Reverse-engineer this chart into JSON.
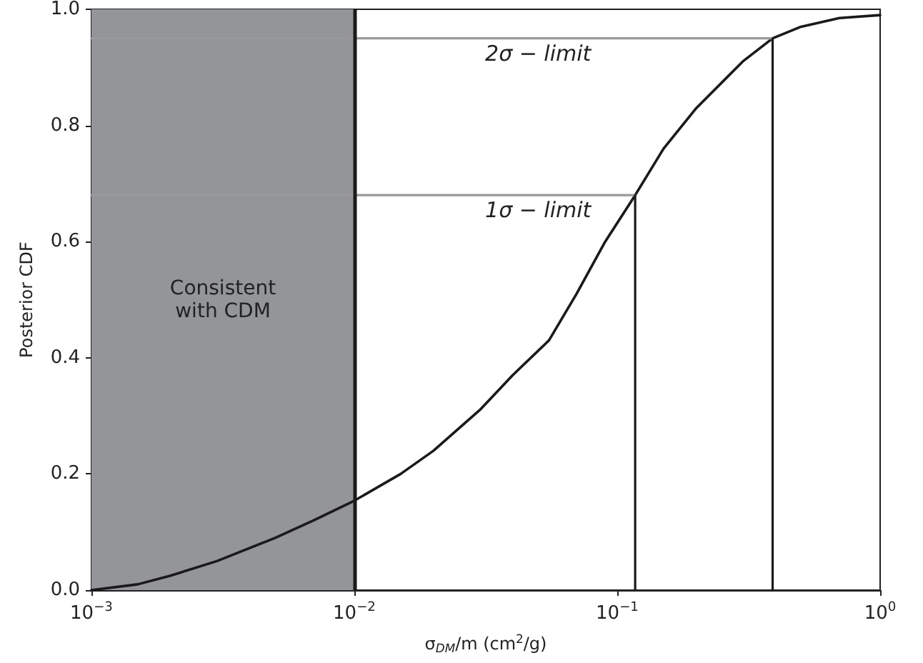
{
  "chart_data": {
    "type": "line",
    "xlabel": "σ$_{DM}$/m (cm$^{2}$/g)",
    "ylabel": "Posterior CDF",
    "log": "x",
    "xlim": [
      0.001,
      1
    ],
    "ylim": [
      0,
      1
    ],
    "xticks": [
      {
        "value": 0.001,
        "label": "10$^{−3}$"
      },
      {
        "value": 0.01,
        "label": "10$^{−2}$"
      },
      {
        "value": 0.1,
        "label": "10$^{−1}$"
      },
      {
        "value": 1,
        "label": "10$^{0}$"
      }
    ],
    "yticks": [
      {
        "value": 0,
        "label": "0.0"
      },
      {
        "value": 0.2,
        "label": "0.2"
      },
      {
        "value": 0.4,
        "label": "0.4"
      },
      {
        "value": 0.6,
        "label": "0.6"
      },
      {
        "value": 0.8,
        "label": "0.8"
      },
      {
        "value": 1,
        "label": "1.0"
      }
    ],
    "series": [
      {
        "color": "#1a1a1a",
        "x": [
          0.001,
          0.0015,
          0.002,
          0.003,
          0.005,
          0.007,
          0.01,
          0.015,
          0.02,
          0.03,
          0.04,
          0.055,
          0.07,
          0.09,
          0.117,
          0.15,
          0.2,
          0.3,
          0.39,
          0.5,
          0.7,
          1.0
        ],
        "values": [
          0.0,
          0.01,
          0.025,
          0.05,
          0.09,
          0.12,
          0.154,
          0.2,
          0.24,
          0.31,
          0.37,
          0.43,
          0.51,
          0.6,
          0.68,
          0.76,
          0.83,
          0.91,
          0.95,
          0.97,
          0.985,
          0.99
        ]
      },
      {
        "color": "#999999",
        "x": [
          0.001,
          0.39
        ],
        "values": [
          0.95,
          0.95
        ]
      },
      {
        "color": "#999999",
        "x": [
          0.001,
          0.117
        ],
        "values": [
          0.68,
          0.68
        ]
      },
      {
        "color": "#1a1a1a",
        "x": [
          0.39,
          0.39
        ],
        "values": [
          0,
          0.95
        ]
      },
      {
        "color": "#1a1a1a",
        "x": [
          0.117,
          0.117
        ],
        "values": [
          0,
          0.68
        ]
      }
    ],
    "bands": [
      {
        "axis": "x",
        "from": 0.001,
        "to": 0.01,
        "label": "Consistent\nwith CDM",
        "color": "#939598"
      }
    ],
    "ref_lines": [
      {
        "axis": "x",
        "value": 0.01,
        "color": "#1a1a1a"
      }
    ],
    "annotations": [
      {
        "text": "2σ − limit",
        "x": 0.05,
        "y": 0.95
      },
      {
        "text": "1σ − limit",
        "x": 0.05,
        "y": 0.68
      }
    ],
    "marker": "none",
    "line_style": "solid",
    "grid": false
  }
}
